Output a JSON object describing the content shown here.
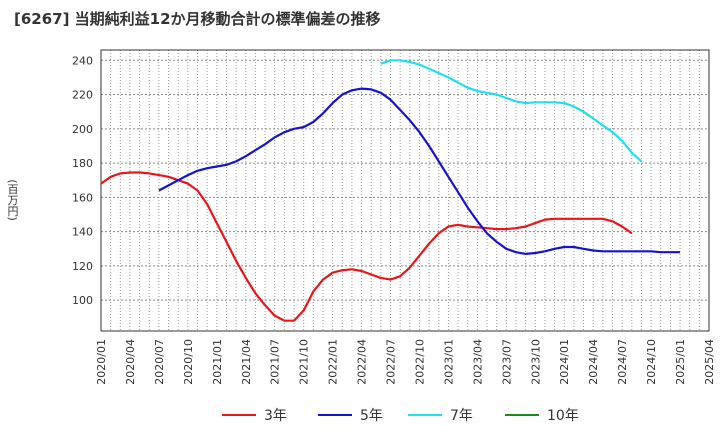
{
  "title": "[6267]  当期純利益12か月移動合計の標準偏差の推移",
  "ylabel": "(百万円)",
  "chart_data": {
    "type": "line",
    "title": "[6267]  当期純利益12か月移動合計の標準偏差の推移",
    "xlabel": "",
    "ylabel": "(百万円)",
    "ylim": [
      82,
      246
    ],
    "y_ticks": [
      100,
      120,
      140,
      160,
      180,
      200,
      220,
      240
    ],
    "x_ticks": [
      "2020/01",
      "2020/04",
      "2020/07",
      "2020/10",
      "2021/01",
      "2021/04",
      "2021/07",
      "2021/10",
      "2022/01",
      "2022/04",
      "2022/07",
      "2022/10",
      "2023/01",
      "2023/04",
      "2023/07",
      "2023/10",
      "2024/01",
      "2024/04",
      "2024/07",
      "2024/10",
      "2025/01",
      "2025/04"
    ],
    "grid": true,
    "legend_position": "bottom",
    "series": [
      {
        "name": "3年",
        "color": "#e8161b",
        "x": [
          "2020/01",
          "2020/02",
          "2020/03",
          "2020/04",
          "2020/05",
          "2020/06",
          "2020/07",
          "2020/08",
          "2020/09",
          "2020/10",
          "2020/11",
          "2020/12",
          "2021/01",
          "2021/02",
          "2021/03",
          "2021/04",
          "2021/05",
          "2021/06",
          "2021/07",
          "2021/08",
          "2021/09",
          "2021/10",
          "2021/11",
          "2021/12",
          "2022/01",
          "2022/02",
          "2022/03",
          "2022/04",
          "2022/05",
          "2022/06",
          "2022/07",
          "2022/08",
          "2022/09",
          "2022/10",
          "2022/11",
          "2022/12",
          "2023/01",
          "2023/02",
          "2023/03",
          "2023/04",
          "2023/05",
          "2023/06",
          "2023/07",
          "2023/08",
          "2023/09",
          "2023/10",
          "2023/11",
          "2023/12",
          "2024/01",
          "2024/02",
          "2024/03",
          "2024/04",
          "2024/05",
          "2024/06",
          "2024/07",
          "2024/08",
          "2024/09",
          "2024/10",
          "2024/11",
          "2024/12",
          "2025/01"
        ],
        "values": [
          168,
          172,
          174,
          174.5,
          174.5,
          174,
          173,
          172,
          170,
          168,
          164,
          156,
          145,
          134,
          123,
          113,
          104,
          97,
          91,
          88,
          88,
          94,
          105,
          112,
          116,
          117.5,
          118,
          117,
          115,
          113,
          112,
          114,
          119,
          126,
          133,
          139,
          143,
          144,
          143,
          142.5,
          142,
          141.5,
          141.5,
          142,
          143,
          145,
          147,
          147.5,
          147.5,
          147.5,
          147.5,
          147.5,
          147.5,
          146,
          143,
          139,
          null,
          null,
          null,
          null,
          null
        ]
      },
      {
        "name": "5年",
        "color": "#1414cc",
        "x": [
          "2020/07",
          "2020/08",
          "2020/09",
          "2020/10",
          "2020/11",
          "2020/12",
          "2021/01",
          "2021/02",
          "2021/03",
          "2021/04",
          "2021/05",
          "2021/06",
          "2021/07",
          "2021/08",
          "2021/09",
          "2021/10",
          "2021/11",
          "2021/12",
          "2022/01",
          "2022/02",
          "2022/03",
          "2022/04",
          "2022/05",
          "2022/06",
          "2022/07",
          "2022/08",
          "2022/09",
          "2022/10",
          "2022/11",
          "2022/12",
          "2023/01",
          "2023/02",
          "2023/03",
          "2023/04",
          "2023/05",
          "2023/06",
          "2023/07",
          "2023/08",
          "2023/09",
          "2023/10",
          "2023/11",
          "2023/12",
          "2024/01",
          "2024/02",
          "2024/03",
          "2024/04",
          "2024/05",
          "2024/06",
          "2024/07",
          "2024/08",
          "2024/09",
          "2024/10",
          "2024/11",
          "2024/12",
          "2025/01"
        ],
        "values": [
          164,
          167,
          170,
          173,
          175.5,
          177,
          178,
          179,
          181,
          184,
          187.5,
          191,
          195,
          198,
          200,
          201,
          204,
          209,
          215,
          220,
          222.5,
          223.5,
          223,
          221,
          217,
          211,
          205,
          198,
          190,
          181,
          172,
          163,
          154,
          146,
          139,
          134,
          130,
          128,
          127,
          127.5,
          128.5,
          130,
          131,
          131,
          130,
          129,
          128.5,
          128.5,
          128.5,
          128.5,
          128.5,
          128.5,
          128,
          128,
          128
        ]
      },
      {
        "name": "7年",
        "color": "#1ee0ee",
        "x": [
          "2022/06",
          "2022/07",
          "2022/08",
          "2022/09",
          "2022/10",
          "2022/11",
          "2022/12",
          "2023/01",
          "2023/02",
          "2023/03",
          "2023/04",
          "2023/05",
          "2023/06",
          "2023/07",
          "2023/08",
          "2023/09",
          "2023/10",
          "2023/11",
          "2023/12",
          "2024/01",
          "2024/02",
          "2024/03",
          "2024/04",
          "2024/05",
          "2024/06",
          "2024/07",
          "2024/08",
          "2024/09",
          "2024/10",
          "2024/11",
          "2024/12",
          "2025/01"
        ],
        "values": [
          238,
          240,
          240,
          239,
          237.5,
          235,
          232.5,
          230,
          227,
          224,
          222,
          221,
          220,
          218,
          216,
          215,
          215.5,
          215.5,
          215.5,
          215,
          213,
          210,
          206,
          202,
          198,
          193,
          186,
          181,
          null,
          null,
          null,
          null
        ]
      },
      {
        "name": "10年",
        "color": "#1a8a1a",
        "x": [],
        "values": []
      }
    ]
  }
}
